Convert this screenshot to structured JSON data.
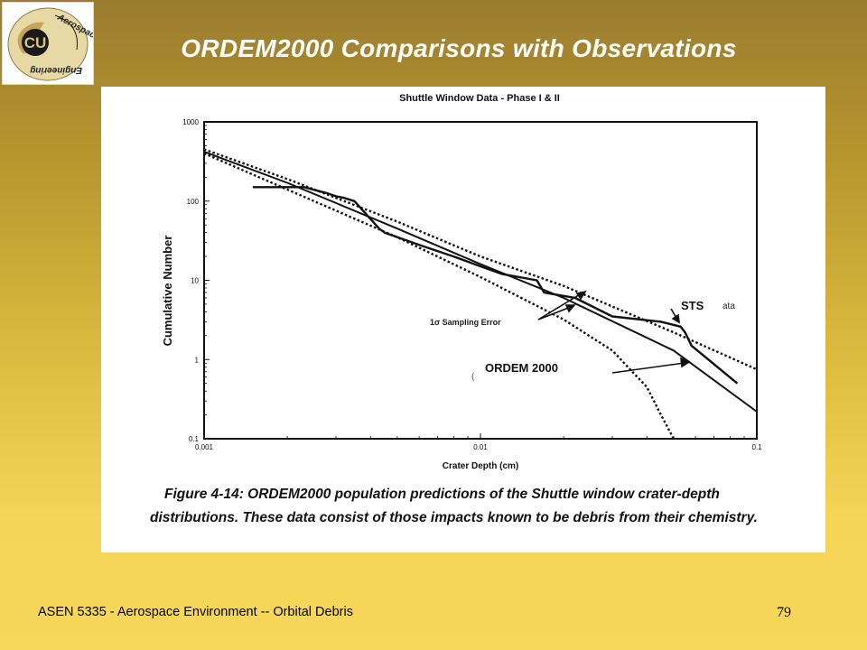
{
  "slide": {
    "title": "ORDEM2000 Comparisons with Observations",
    "footer": "ASEN 5335 - Aerospace Environment -- Orbital Debris",
    "page_number": "79",
    "logo_text": "Aerospace Engineering",
    "logo_mark": "CU"
  },
  "figure": {
    "caption_line1": "Figure 4-14:  ORDEM2000 population predictions of the Shuttle window crater-depth",
    "caption_line2": "distributions.  These data consist of those impacts known to be debris from their chemistry."
  },
  "chart_data": {
    "type": "line",
    "title": "Shuttle Window Data - Phase I & II",
    "xlabel": "Crater Depth (cm)",
    "ylabel": "Cumulative Number",
    "xscale": "log",
    "yscale": "log",
    "xlim": [
      0.001,
      0.1
    ],
    "ylim": [
      0.1,
      1000
    ],
    "x_ticks": [
      "0.001",
      "0.01",
      "0.1"
    ],
    "y_ticks": [
      "1000",
      "100",
      "10",
      "1",
      "0.1"
    ],
    "grid": false,
    "annotations": [
      "STS",
      "ata",
      "ORDEM 2000",
      "1σ Sampling Error",
      "("
    ],
    "series": [
      {
        "name": "STS",
        "style": "solid-thick-step",
        "x": [
          0.0015,
          0.0023,
          0.0028,
          0.003,
          0.0032,
          0.0035,
          0.0043,
          0.0045,
          0.006,
          0.008,
          0.01,
          0.012,
          0.016,
          0.017,
          0.022,
          0.03,
          0.045,
          0.053,
          0.055,
          0.058,
          0.085
        ],
        "y": [
          150,
          150,
          125,
          115,
          110,
          100,
          45,
          40,
          28,
          20,
          15,
          12,
          10,
          7,
          6,
          3.5,
          3,
          2.6,
          2.2,
          1.5,
          0.5
        ]
      },
      {
        "name": "ORDEM 2000",
        "style": "solid",
        "x": [
          0.001,
          0.002,
          0.005,
          0.01,
          0.02,
          0.05,
          0.1
        ],
        "y": [
          420,
          170,
          45,
          16,
          6,
          1.3,
          0.22
        ]
      },
      {
        "name": "1σ Sampling Error",
        "style": "dashed",
        "x": [
          0.001,
          0.002,
          0.005,
          0.01,
          0.02,
          0.05,
          0.1
        ],
        "y": [
          450,
          190,
          55,
          20,
          8.5,
          2.2,
          0.75
        ]
      },
      {
        "name": "1σ Sampling Error",
        "style": "dashed",
        "x": [
          0.001,
          0.002,
          0.005,
          0.01,
          0.02,
          0.03,
          0.04,
          0.045,
          0.05
        ],
        "y": [
          400,
          140,
          35,
          11,
          3.2,
          1.3,
          0.45,
          0.2,
          0.1
        ]
      }
    ]
  }
}
